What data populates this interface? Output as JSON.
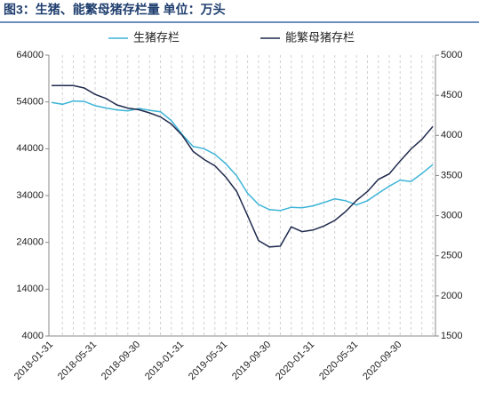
{
  "chart_data": {
    "type": "line",
    "title": "图3：生猪、能繁母猪存栏量 单位：万头",
    "categories": [
      "2018-01-31",
      null,
      null,
      null,
      "2018-05-31",
      null,
      null,
      null,
      "2018-09-30",
      null,
      null,
      null,
      "2019-01-31",
      null,
      null,
      null,
      "2019-05-31",
      null,
      null,
      null,
      "2019-09-30",
      null,
      null,
      null,
      "2020-01-31",
      null,
      null,
      null,
      "2020-05-31",
      null,
      null,
      null,
      "2020-09-30",
      null,
      null,
      null
    ],
    "series": [
      {
        "name": "生猪存栏",
        "color": "#3cb4d8",
        "axis": "y",
        "values": [
          53900,
          53500,
          54200,
          54100,
          53200,
          52700,
          52300,
          52100,
          52600,
          52200,
          51900,
          50000,
          47000,
          44500,
          44000,
          42800,
          40800,
          38200,
          34500,
          32100,
          31000,
          30800,
          31500,
          31400,
          31800,
          32500,
          33300,
          32900,
          32000,
          32900,
          34500,
          36000,
          37300,
          37000,
          38700,
          40600
        ]
      },
      {
        "name": "能繁母猪存栏",
        "color": "#1f2a4d",
        "axis": "y2",
        "values": [
          4620,
          4620,
          4620,
          4590,
          4510,
          4460,
          4380,
          4340,
          4320,
          4280,
          4230,
          4140,
          4000,
          3800,
          3700,
          3620,
          3480,
          3300,
          3000,
          2690,
          2610,
          2620,
          2860,
          2800,
          2820,
          2870,
          2940,
          3050,
          3190,
          3300,
          3450,
          3520,
          3680,
          3830,
          3950,
          4110
        ]
      }
    ],
    "ylim": [
      4000,
      64000
    ],
    "yticks": [
      4000,
      14000,
      24000,
      34000,
      44000,
      54000,
      64000
    ],
    "y2lim": [
      1500,
      5000
    ],
    "y2ticks": [
      1500,
      2000,
      2500,
      3000,
      3500,
      4000,
      4500,
      5000
    ],
    "grid": true
  }
}
